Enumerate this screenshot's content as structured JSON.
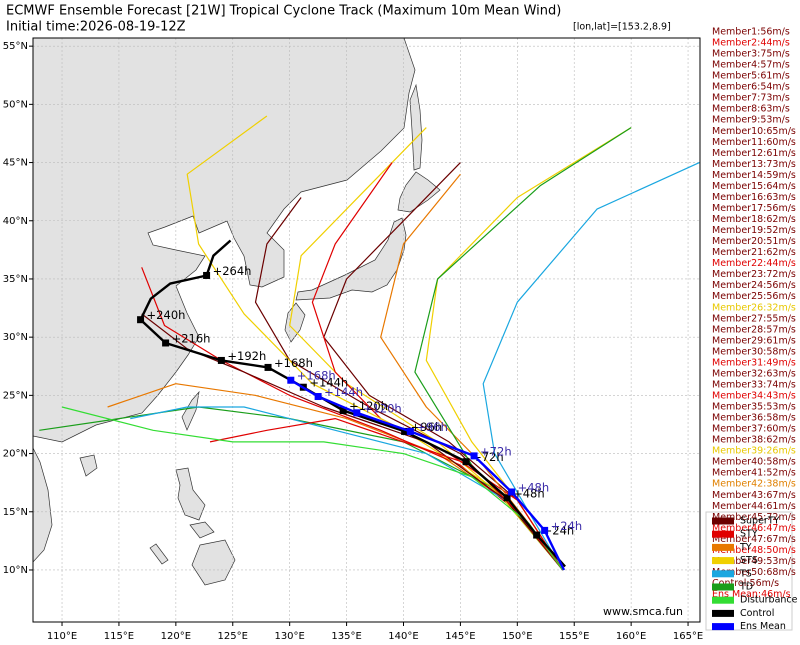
{
  "chart_data": {
    "type": "map",
    "title": "ECMWF Ensemble Forecast [21W] Tropical Cyclone Track (Maximum 10m Mean Wind)",
    "subtitle": "Initial time:2026-08-19-12Z",
    "cursor": "[lon,lat]=[153.2,8.9]",
    "watermark": "www.smca.fun",
    "xlim": [
      107.45,
      166.05
    ],
    "ylim": [
      5.53,
      55.7
    ],
    "xticks": [
      {
        "value": 110,
        "label": "110°E"
      },
      {
        "value": 115,
        "label": "115°E"
      },
      {
        "value": 120,
        "label": "120°E"
      },
      {
        "value": 125,
        "label": "125°E"
      },
      {
        "value": 130,
        "label": "130°E"
      },
      {
        "value": 135,
        "label": "135°E"
      },
      {
        "value": 140,
        "label": "140°E"
      },
      {
        "value": 145,
        "label": "145°E"
      },
      {
        "value": 150,
        "label": "150°E"
      },
      {
        "value": 155,
        "label": "155°E"
      },
      {
        "value": 160,
        "label": "160°E"
      },
      {
        "value": 165,
        "label": "165°E"
      }
    ],
    "yticks": [
      {
        "value": 10,
        "label": "10°N"
      },
      {
        "value": 15,
        "label": "15°N"
      },
      {
        "value": 20,
        "label": "20°N"
      },
      {
        "value": 25,
        "label": "25°N"
      },
      {
        "value": 30,
        "label": "30°N"
      },
      {
        "value": 35,
        "label": "35°N"
      },
      {
        "value": 40,
        "label": "40°N"
      },
      {
        "value": 45,
        "label": "45°N"
      },
      {
        "value": 50,
        "label": "50°N"
      },
      {
        "value": 55,
        "label": "55°N"
      }
    ],
    "grid": true,
    "tracks": [
      {
        "color": "#6b0000",
        "lon": [
          154,
          150,
          144,
          137,
          133,
          135,
          140,
          145
        ],
        "lat": [
          10,
          16,
          21,
          25,
          30,
          35,
          40,
          45
        ]
      },
      {
        "color": "#f0d000",
        "lon": [
          154,
          149,
          143,
          135,
          130,
          131,
          137,
          142
        ],
        "lat": [
          10,
          16,
          21,
          26,
          31,
          37,
          43,
          48
        ]
      },
      {
        "color": "#e87800",
        "lon": [
          154,
          149,
          143,
          135,
          127,
          120,
          114
        ],
        "lat": [
          10,
          16,
          20,
          23,
          25,
          26,
          24
        ]
      },
      {
        "color": "#e00000",
        "lon": [
          154,
          150,
          145,
          138,
          130,
          124,
          119,
          117
        ],
        "lat": [
          10,
          15,
          19,
          22,
          25,
          28,
          31,
          36
        ]
      },
      {
        "color": "#1aa7e0",
        "lon": [
          154,
          151,
          148,
          147,
          150,
          157,
          166
        ],
        "lat": [
          10,
          15,
          20,
          26,
          33,
          41,
          45
        ]
      },
      {
        "color": "#1a9e1a",
        "lon": [
          154,
          148,
          140,
          130,
          122,
          115,
          108
        ],
        "lat": [
          10,
          17,
          21,
          23,
          24,
          23,
          22
        ]
      },
      {
        "color": "#f0d000",
        "lon": [
          154,
          150,
          146,
          142,
          143,
          150,
          160
        ],
        "lat": [
          10,
          16,
          21,
          28,
          35,
          42,
          48
        ]
      },
      {
        "color": "#6b0000",
        "lon": [
          154,
          150,
          145,
          137,
          130,
          127,
          128,
          131
        ],
        "lat": [
          10,
          15,
          20,
          24,
          28,
          33,
          38,
          42
        ]
      },
      {
        "color": "#e00000",
        "lon": [
          154,
          150,
          144,
          138,
          134,
          132,
          134,
          139
        ],
        "lat": [
          10,
          16,
          20,
          23,
          27,
          33,
          38,
          45
        ]
      },
      {
        "color": "#f0d000",
        "lon": [
          154,
          148,
          140,
          132,
          126,
          122,
          121,
          128
        ],
        "lat": [
          10,
          17,
          22,
          26,
          32,
          38,
          44,
          49
        ]
      },
      {
        "color": "#1aa7e0",
        "lon": [
          154,
          149,
          142,
          134,
          126,
          121,
          116
        ],
        "lat": [
          10,
          16,
          20,
          22,
          24,
          24,
          23
        ]
      },
      {
        "color": "#e87800",
        "lon": [
          154,
          151,
          147,
          142,
          138,
          140,
          145
        ],
        "lat": [
          10,
          14,
          19,
          24,
          30,
          38,
          44
        ]
      },
      {
        "color": "#1a9e1a",
        "lon": [
          154,
          151,
          146,
          141,
          143,
          152,
          160
        ],
        "lat": [
          10,
          14,
          19,
          27,
          35,
          43,
          48
        ]
      },
      {
        "color": "#6b0000",
        "lon": [
          154,
          149,
          142,
          133,
          126,
          121,
          117
        ],
        "lat": [
          10,
          16,
          21,
          24,
          27,
          29,
          32
        ]
      },
      {
        "color": "#e00000",
        "lon": [
          154,
          150,
          146,
          140,
          134,
          128,
          123
        ],
        "lat": [
          10,
          15,
          19,
          21,
          23,
          22,
          21
        ]
      },
      {
        "color": "#33dd33",
        "lon": [
          154,
          151,
          146,
          140,
          133,
          125,
          118,
          110
        ],
        "lat": [
          10,
          14,
          18,
          20,
          21,
          21,
          22,
          24
        ]
      }
    ],
    "control": {
      "color": "#000000",
      "lon": [
        154.2,
        151.7,
        149.1,
        145.5,
        140.1,
        134.7,
        131.2,
        128.1,
        124.0,
        119.1,
        116.9,
        117.8,
        119.5,
        122.7,
        123.3,
        124.8
      ],
      "lat": [
        10.3,
        13.0,
        16.2,
        19.3,
        21.9,
        23.7,
        25.7,
        27.4,
        28.0,
        29.5,
        31.5,
        33.3,
        34.6,
        35.3,
        37.0,
        38.3
      ],
      "labels": [
        null,
        "+24h",
        "+48h",
        "+72h",
        "+96h",
        "+120h",
        "+144h",
        "+168h",
        "+192h",
        "+216h",
        "+240h",
        null,
        null,
        "+264h",
        null,
        null
      ]
    },
    "ens_mean": {
      "color": "#0000ff",
      "lon": [
        154.1,
        152.4,
        149.5,
        146.2,
        140.6,
        135.9,
        132.5,
        130.1
      ],
      "lat": [
        10.0,
        13.4,
        16.7,
        19.8,
        21.9,
        23.5,
        24.9,
        26.3
      ],
      "labels": [
        null,
        "+24h",
        "+48h",
        "+72h",
        "+96h",
        "+120h",
        "+144h",
        "+168h"
      ]
    },
    "member_list": [
      {
        "text": "Member1:56m/s",
        "color": "#7a0000"
      },
      {
        "text": "Member2:44m/s",
        "color": "#e00000"
      },
      {
        "text": "Member3:75m/s",
        "color": "#7a0000"
      },
      {
        "text": "Member4:57m/s",
        "color": "#7a0000"
      },
      {
        "text": "Member5:61m/s",
        "color": "#7a0000"
      },
      {
        "text": "Member6:54m/s",
        "color": "#7a0000"
      },
      {
        "text": "Member7:73m/s",
        "color": "#7a0000"
      },
      {
        "text": "Member8:63m/s",
        "color": "#7a0000"
      },
      {
        "text": "Member9:53m/s",
        "color": "#7a0000"
      },
      {
        "text": "Member10:65m/s",
        "color": "#7a0000"
      },
      {
        "text": "Member11:60m/s",
        "color": "#7a0000"
      },
      {
        "text": "Member12:61m/s",
        "color": "#7a0000"
      },
      {
        "text": "Member13:73m/s",
        "color": "#7a0000"
      },
      {
        "text": "Member14:59m/s",
        "color": "#7a0000"
      },
      {
        "text": "Member15:64m/s",
        "color": "#7a0000"
      },
      {
        "text": "Member16:63m/s",
        "color": "#7a0000"
      },
      {
        "text": "Member17:56m/s",
        "color": "#7a0000"
      },
      {
        "text": "Member18:62m/s",
        "color": "#7a0000"
      },
      {
        "text": "Member19:52m/s",
        "color": "#7a0000"
      },
      {
        "text": "Member20:51m/s",
        "color": "#7a0000"
      },
      {
        "text": "Member21:62m/s",
        "color": "#7a0000"
      },
      {
        "text": "Member22:44m/s",
        "color": "#e00000"
      },
      {
        "text": "Member23:72m/s",
        "color": "#7a0000"
      },
      {
        "text": "Member24:56m/s",
        "color": "#7a0000"
      },
      {
        "text": "Member25:56m/s",
        "color": "#7a0000"
      },
      {
        "text": "Member26:32m/s",
        "color": "#e8c800"
      },
      {
        "text": "Member27:55m/s",
        "color": "#7a0000"
      },
      {
        "text": "Member28:57m/s",
        "color": "#7a0000"
      },
      {
        "text": "Member29:61m/s",
        "color": "#7a0000"
      },
      {
        "text": "Member30:58m/s",
        "color": "#7a0000"
      },
      {
        "text": "Member31:49m/s",
        "color": "#e00000"
      },
      {
        "text": "Member32:63m/s",
        "color": "#7a0000"
      },
      {
        "text": "Member33:74m/s",
        "color": "#7a0000"
      },
      {
        "text": "Member34:43m/s",
        "color": "#e00000"
      },
      {
        "text": "Member35:53m/s",
        "color": "#7a0000"
      },
      {
        "text": "Member36:58m/s",
        "color": "#7a0000"
      },
      {
        "text": "Member37:60m/s",
        "color": "#7a0000"
      },
      {
        "text": "Member38:62m/s",
        "color": "#7a0000"
      },
      {
        "text": "Member39:26m/s",
        "color": "#e8c800"
      },
      {
        "text": "Member40:58m/s",
        "color": "#7a0000"
      },
      {
        "text": "Member41:52m/s",
        "color": "#7a0000"
      },
      {
        "text": "Member42:38m/s",
        "color": "#e08000"
      },
      {
        "text": "Member43:67m/s",
        "color": "#7a0000"
      },
      {
        "text": "Member44:61m/s",
        "color": "#7a0000"
      },
      {
        "text": "Member45:72m/s",
        "color": "#7a0000"
      },
      {
        "text": "Member46:47m/s",
        "color": "#e00000"
      },
      {
        "text": "Member47:67m/s",
        "color": "#7a0000"
      },
      {
        "text": "Member48:50m/s",
        "color": "#e00000"
      },
      {
        "text": "Member49:53m/s",
        "color": "#7a0000"
      },
      {
        "text": "Member50:68m/s",
        "color": "#7a0000"
      },
      {
        "text": "Control:56m/s",
        "color": "#7a0000"
      },
      {
        "text": "Ens Mean:46m/s",
        "color": "#e00000"
      }
    ],
    "legend": [
      {
        "label": "SuperTY",
        "color": "#6b0000"
      },
      {
        "label": "STY",
        "color": "#e00000"
      },
      {
        "label": "TY",
        "color": "#e87800"
      },
      {
        "label": "STS",
        "color": "#f0d000"
      },
      {
        "label": "TS",
        "color": "#1aa7e0"
      },
      {
        "label": "TD",
        "color": "#1a9e1a"
      },
      {
        "label": "Disturbance",
        "color": "#33dd33"
      },
      {
        "label": "Control",
        "color": "#000000"
      },
      {
        "label": "Ens Mean",
        "color": "#0000ff"
      }
    ]
  }
}
